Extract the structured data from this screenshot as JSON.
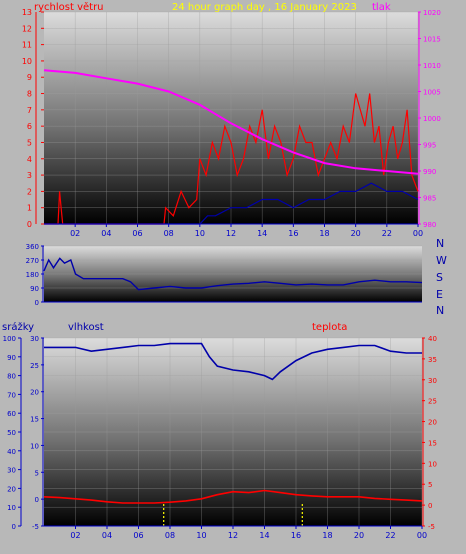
{
  "header": {
    "left_label": "rychlost větru",
    "title": "24 hour graph day , 16 January 2023",
    "right_label": "tlak"
  },
  "middle": {
    "compass": [
      "N",
      "W",
      "S",
      "E",
      "N"
    ]
  },
  "bottom_header": {
    "left1": "srážky",
    "left2": "vlhkost",
    "right": "teplota"
  },
  "colors": {
    "wind": "#ff0000",
    "pressure": "#ff00ff",
    "direction": "#0000aa",
    "humidity": "#0000aa",
    "temperature": "#ff0000",
    "rain": "#ffff00",
    "title": "#ffff00",
    "axis_left": "#0000cc",
    "axis_right": "#ff0000"
  },
  "chart_data": [
    {
      "type": "line",
      "name_hint": "wind-pressure",
      "x_ticks": [
        "02",
        "04",
        "06",
        "08",
        "10",
        "12",
        "14",
        "16",
        "18",
        "20",
        "22",
        "00"
      ],
      "y_left_ticks": [
        "0",
        "1",
        "2",
        "3",
        "4",
        "5",
        "6",
        "7",
        "8",
        "9",
        "10",
        "11",
        "12",
        "13"
      ],
      "y_right_ticks": [
        "980",
        "985",
        "990",
        "995",
        "1000",
        "1005",
        "1010",
        "1015",
        "1020"
      ],
      "ylim_left": [
        0,
        13
      ],
      "ylim_right": [
        980,
        1020
      ],
      "xlim": [
        0,
        24
      ],
      "pressure": {
        "x": [
          0,
          2,
          4,
          6,
          8,
          10,
          12,
          14,
          16,
          18,
          20,
          22,
          24
        ],
        "y": [
          1009,
          1008.5,
          1007.5,
          1006.5,
          1005,
          1002.5,
          999,
          996,
          993.5,
          991.5,
          990.5,
          990,
          989.5
        ]
      },
      "wind_gust": {
        "x": [
          0,
          0.9,
          1.0,
          1.1,
          1.2,
          2,
          4,
          6,
          7.7,
          7.8,
          8.3,
          8.8,
          9.3,
          9.8,
          10.0,
          10.4,
          10.8,
          11.2,
          11.6,
          12.0,
          12.4,
          12.8,
          13.2,
          13.6,
          14.0,
          14.4,
          14.8,
          15.2,
          15.6,
          16.0,
          16.4,
          16.8,
          17.2,
          17.6,
          18.0,
          18.4,
          18.8,
          19.2,
          19.6,
          20.0,
          20.3,
          20.6,
          20.9,
          21.2,
          21.5,
          21.8,
          22.1,
          22.4,
          22.7,
          23.0,
          23.3,
          23.6,
          24
        ],
        "y": [
          0,
          0,
          2,
          1,
          0,
          0,
          0,
          0,
          0,
          1,
          0.5,
          2,
          1,
          1.5,
          4,
          3,
          5,
          4,
          6,
          5,
          3,
          4,
          6,
          5,
          7,
          4,
          6,
          5,
          3,
          4,
          6,
          5,
          5,
          3,
          4,
          5,
          4,
          6,
          5,
          8,
          7,
          6,
          8,
          5,
          6,
          3,
          5,
          6,
          4,
          5,
          7,
          3,
          2
        ]
      },
      "wind_avg": {
        "x": [
          0,
          10.0,
          10.5,
          11,
          12,
          13,
          14,
          15,
          16,
          17,
          18,
          19,
          20,
          21,
          22,
          23,
          24
        ],
        "y": [
          0,
          0,
          0.5,
          0.5,
          1,
          1,
          1.5,
          1.5,
          1,
          1.5,
          1.5,
          2,
          2,
          2.5,
          2,
          2,
          1.5
        ]
      }
    },
    {
      "type": "line",
      "name_hint": "wind-direction",
      "y_ticks": [
        "0",
        "90",
        "180",
        "270",
        "360"
      ],
      "ylim": [
        0,
        360
      ],
      "x": [
        0,
        0.3,
        0.6,
        1.0,
        1.3,
        1.7,
        2.0,
        2.5,
        3.0,
        4.0,
        5.0,
        5.5,
        6.0,
        7.0,
        8.0,
        9.0,
        10.0,
        11.0,
        12.0,
        13.0,
        14.0,
        15.0,
        16.0,
        17.0,
        18.0,
        19.0,
        20.0,
        21.0,
        22.0,
        23.0,
        24.0
      ],
      "y": [
        200,
        270,
        220,
        280,
        250,
        270,
        180,
        150,
        150,
        150,
        150,
        130,
        80,
        90,
        100,
        90,
        90,
        105,
        115,
        120,
        130,
        120,
        110,
        115,
        110,
        110,
        130,
        140,
        130,
        130,
        125
      ]
    },
    {
      "type": "line",
      "name_hint": "humidity-temperature-rain",
      "y_left1_ticks": [
        "0",
        "10",
        "20",
        "30",
        "40",
        "50",
        "60",
        "70",
        "80",
        "90",
        "100"
      ],
      "y_left2_ticks": [
        "-5",
        "0",
        "5",
        "10",
        "15",
        "20",
        "25",
        "30"
      ],
      "y_right_ticks": [
        "-5",
        "0",
        "5",
        "10",
        "15",
        "20",
        "25",
        "30",
        "35",
        "40"
      ],
      "ylim_humidity": [
        0,
        100
      ],
      "ylim_temperature": [
        -5,
        40
      ],
      "humidity": {
        "x": [
          0,
          1,
          2,
          3,
          4,
          5,
          6,
          7,
          8,
          9,
          10,
          10.5,
          11,
          12,
          13,
          14,
          14.5,
          15,
          16,
          17,
          18,
          19,
          20,
          21,
          22,
          23,
          24
        ],
        "y": [
          95,
          95,
          95,
          93,
          94,
          95,
          96,
          96,
          97,
          97,
          97,
          90,
          85,
          83,
          82,
          80,
          78,
          82,
          88,
          92,
          94,
          95,
          96,
          96,
          93,
          92,
          92
        ]
      },
      "temperature": {
        "x": [
          0,
          1,
          2,
          3,
          4,
          5,
          6,
          7,
          8,
          9,
          10,
          11,
          12,
          13,
          14,
          15,
          16,
          17,
          18,
          19,
          20,
          21,
          22,
          23,
          24
        ],
        "y": [
          2,
          1.8,
          1.5,
          1.2,
          0.8,
          0.5,
          0.5,
          0.5,
          0.7,
          1.0,
          1.5,
          2.5,
          3.2,
          3.0,
          3.5,
          3.0,
          2.5,
          2.2,
          2.0,
          2.0,
          2.0,
          1.6,
          1.4,
          1.2,
          1.0
        ]
      },
      "rain": {
        "x": [
          7.6,
          16.4
        ],
        "y": [
          2,
          2
        ]
      }
    }
  ]
}
